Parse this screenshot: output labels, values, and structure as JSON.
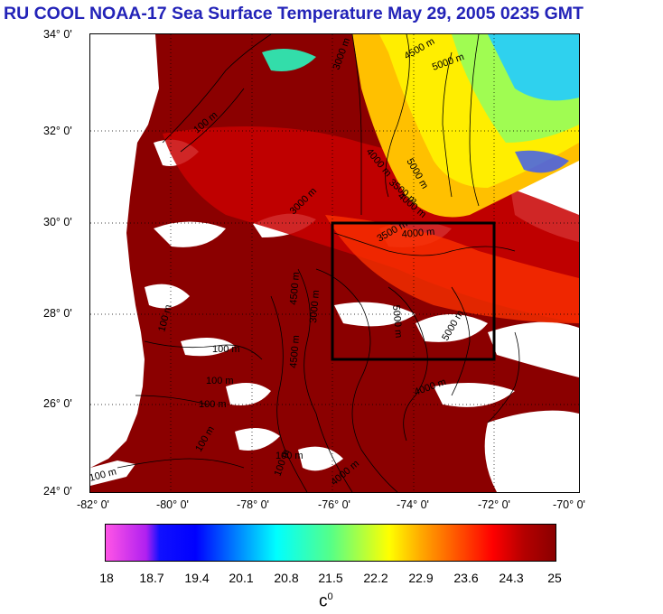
{
  "title": "RU COOL  NOAA-17 Sea Surface Temperature May 29, 2005 0235 GMT",
  "lat_labels": [
    "34° 0'",
    "32° 0'",
    "30° 0'",
    "28° 0'",
    "26° 0'",
    "24° 0'"
  ],
  "lon_labels": [
    "-82° 0'",
    "-80° 0'",
    "-78° 0'",
    "-76° 0'",
    "-74° 0'",
    "-72° 0'",
    "-70° 0'"
  ],
  "colorbar": {
    "ticks": [
      "18",
      "18.7",
      "19.4",
      "20.1",
      "20.8",
      "21.5",
      "22.2",
      "22.9",
      "23.6",
      "24.3",
      "25"
    ],
    "unit": "c",
    "unit_sup": "0",
    "colors": [
      "#ff55e6",
      "#0000ff",
      "#00ffff",
      "#55ff88",
      "#ffff00",
      "#ff5500",
      "#ff0000",
      "#8a0000"
    ]
  },
  "contours": [
    {
      "label": "5000 m"
    },
    {
      "label": "4500 m"
    },
    {
      "label": "4000 m"
    },
    {
      "label": "3000 m"
    },
    {
      "label": "5000 m"
    },
    {
      "label": "4000 m"
    },
    {
      "label": "3500 m"
    },
    {
      "label": "4000 m"
    },
    {
      "label": "3500 m"
    },
    {
      "label": "3000 m"
    },
    {
      "label": "100 m"
    },
    {
      "label": "100 m"
    },
    {
      "label": "100 m"
    },
    {
      "label": "100 m"
    },
    {
      "label": "100 m"
    },
    {
      "label": "100 m"
    },
    {
      "label": "100 m"
    },
    {
      "label": "3000 m"
    },
    {
      "label": "4500 m"
    },
    {
      "label": "4500 m"
    },
    {
      "label": "5000 m"
    },
    {
      "label": "5000 m"
    },
    {
      "label": "4000 m"
    },
    {
      "label": "100 m"
    },
    {
      "label": "100 m"
    },
    {
      "label": "4000 m"
    }
  ],
  "study_box": {
    "lon_min": -76,
    "lon_max": -72,
    "lat_min": 27,
    "lat_max": 30
  }
}
